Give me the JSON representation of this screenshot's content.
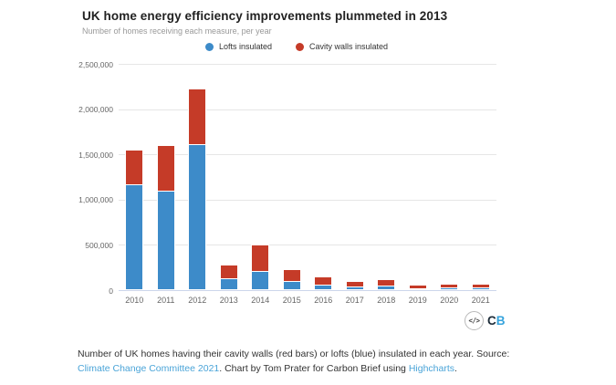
{
  "header": {
    "title": "UK home energy efficiency improvements plummeted in 2013",
    "subtitle": "Number of homes receiving each measure, per year"
  },
  "chart_data": {
    "type": "bar",
    "stacked": true,
    "title": "UK home energy efficiency improvements plummeted in 2013",
    "subtitle": "Number of homes receiving each measure, per year",
    "xlabel": "",
    "ylabel": "",
    "grid": "horizontal",
    "legend_position": "top-center",
    "categories": [
      "2010",
      "2011",
      "2012",
      "2013",
      "2014",
      "2015",
      "2016",
      "2017",
      "2018",
      "2019",
      "2020",
      "2021"
    ],
    "series": [
      {
        "name": "Lofts insulated",
        "color": "#3d8bc9",
        "values": [
          1170000,
          1100000,
          1610000,
          130000,
          210000,
          100000,
          60000,
          45000,
          50000,
          25000,
          30000,
          30000
        ]
      },
      {
        "name": "Cavity walls insulated",
        "color": "#c53b28",
        "values": [
          390000,
          510000,
          630000,
          160000,
          305000,
          145000,
          105000,
          65000,
          80000,
          50000,
          55000,
          55000
        ]
      }
    ],
    "ylim": [
      0,
      2500000
    ],
    "yticks": [
      {
        "value": 0,
        "label": "0"
      },
      {
        "value": 500000,
        "label": "500,000"
      },
      {
        "value": 1000000,
        "label": "1,000,000"
      },
      {
        "value": 1500000,
        "label": "1,500,000"
      },
      {
        "value": 2000000,
        "label": "2,000,000"
      },
      {
        "value": 2500000,
        "label": "2,500,000"
      }
    ]
  },
  "colors": {
    "grid": "#e6e6e6",
    "axis_line": "#ccd6eb",
    "link": "#4aa4d8",
    "lofts_blue": "#3d8bc9",
    "cavity_red": "#c53b28"
  },
  "logo": {
    "embed_icon": "</>",
    "cb_c": "C",
    "cb_b": "B"
  },
  "caption": {
    "parts": [
      {
        "text": "Number of UK homes having their cavity walls (red bars) or lofts (blue) insulated in each year. Source: ",
        "link": false
      },
      {
        "text": "Climate Change Committee 2021",
        "link": true
      },
      {
        "text": ". Chart by Tom Prater for Carbon Brief using ",
        "link": false
      },
      {
        "text": "Highcharts",
        "link": true
      },
      {
        "text": ".",
        "link": false
      }
    ]
  }
}
